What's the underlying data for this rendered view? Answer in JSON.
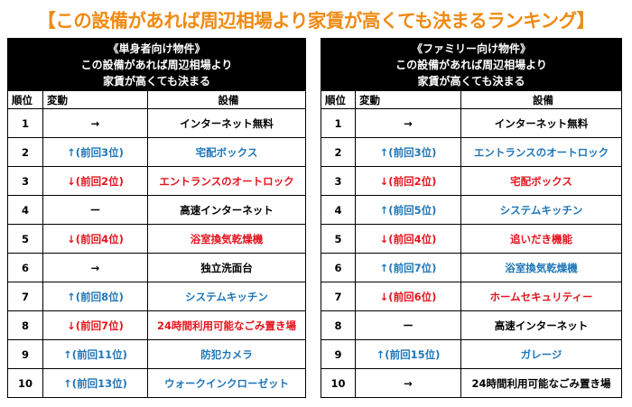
{
  "title": "【この設備があれば周辺相場より家賃が高くても決まるランキング】",
  "tables": [
    {
      "header": [
        "《単身者向け物件》",
        "この設備があれば周辺相場より",
        "家賃が高くても決まる"
      ],
      "columns": [
        "順位",
        "変動",
        "設備"
      ],
      "rows": [
        [
          1,
          "→",
          "インターネット無料"
        ],
        [
          2,
          "↑(前回3位)",
          "宅配ボックス"
        ],
        [
          3,
          "↓(前回2位)",
          "エントランスのオートロック"
        ],
        [
          4,
          "ー",
          "高速インターネット"
        ],
        [
          5,
          "↓(前回4位)",
          "浴室換気乾燥機"
        ],
        [
          6,
          "→",
          "独立洗面台"
        ],
        [
          7,
          "↑(前回8位)",
          "システムキッチン"
        ],
        [
          8,
          "↓(前回7位)",
          "24時間利用可能なごみ置き場"
        ],
        [
          9,
          "↑(前回11位)",
          "防犯カメラ"
        ],
        [
          10,
          "↑(前回13位)",
          "ウォークインクローゼット"
        ]
      ]
    },
    {
      "header": [
        "《ファミリー向け物件》",
        "この設備があれば周辺相場より",
        "家賃が高くても決まる"
      ],
      "columns": [
        "順位",
        "変動",
        "設備"
      ],
      "rows": [
        [
          1,
          "→",
          "インターネット無料"
        ],
        [
          2,
          "↑(前回3位)",
          "エントランスのオートロック"
        ],
        [
          3,
          "↓(前回2位)",
          "宅配ボックス"
        ],
        [
          4,
          "↑(前回5位)",
          "システムキッチン"
        ],
        [
          5,
          "↓(前回4位)",
          "追いだき機能"
        ],
        [
          6,
          "↑(前回7位)",
          "浴室換気乾燥機"
        ],
        [
          7,
          "↓(前回6位)",
          "ホームセキュリティー"
        ],
        [
          8,
          "ー",
          "高速インターネット"
        ],
        [
          9,
          "↑(前回15位)",
          "ガレージ"
        ],
        [
          10,
          "→",
          "24時間利用可能なごみ置き場"
        ]
      ]
    }
  ]
}
